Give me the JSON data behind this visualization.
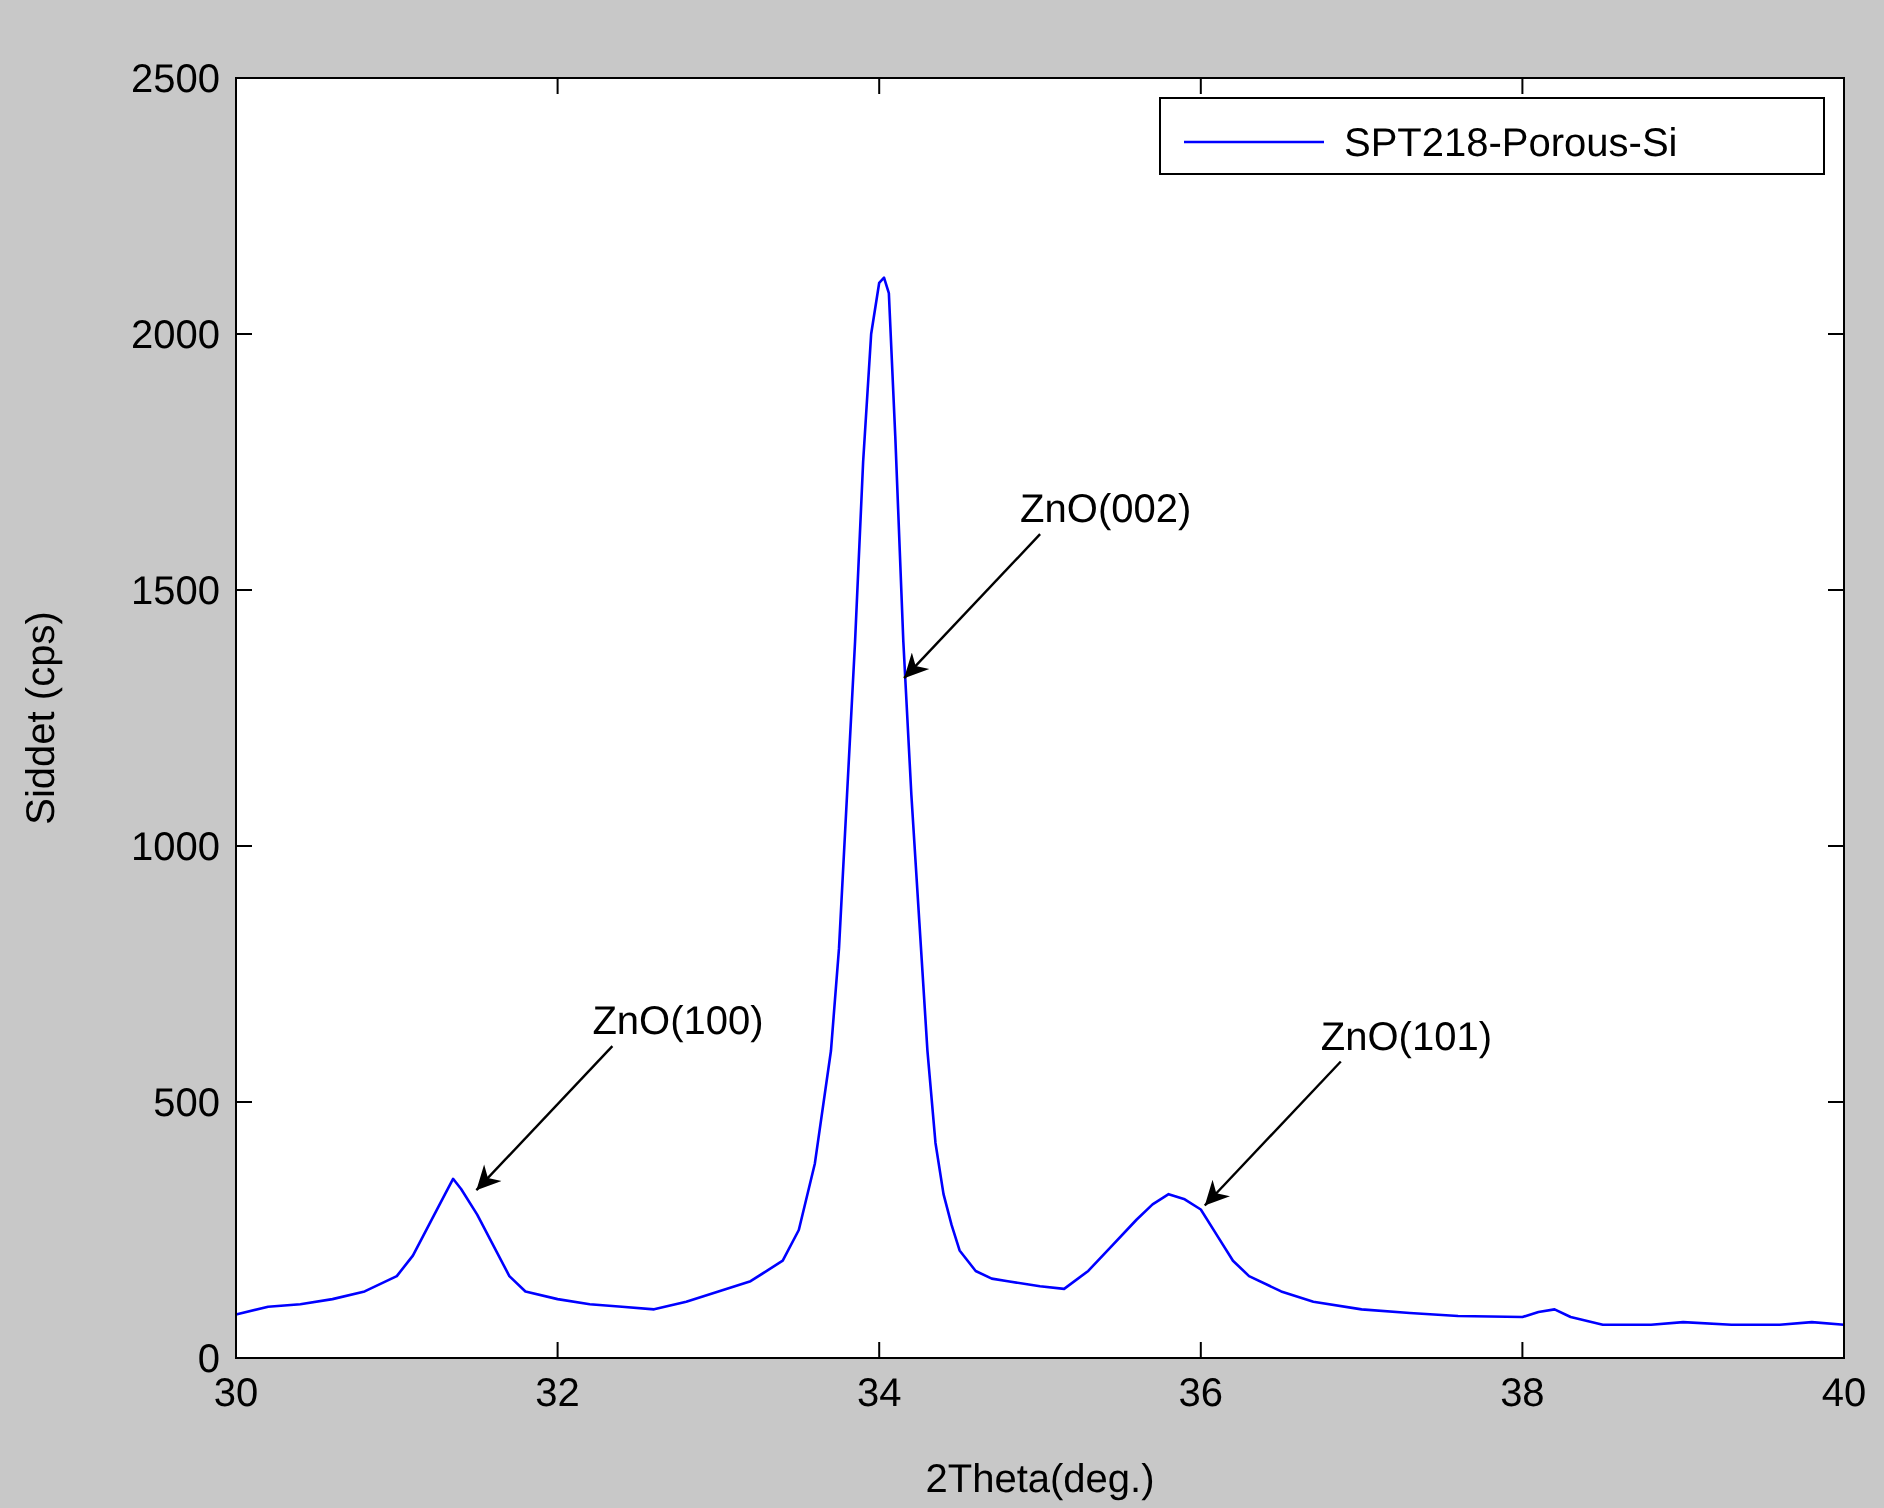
{
  "chart_data": {
    "type": "line",
    "xlabel": "2Theta(deg.)",
    "ylabel": "Siddet (cps)",
    "x": [
      30,
      30.2,
      30.4,
      30.6,
      30.8,
      31,
      31.1,
      31.2,
      31.3,
      31.35,
      31.4,
      31.5,
      31.6,
      31.7,
      31.8,
      32,
      32.2,
      32.4,
      32.6,
      32.8,
      33,
      33.2,
      33.4,
      33.5,
      33.6,
      33.7,
      33.75,
      33.8,
      33.85,
      33.9,
      33.95,
      34,
      34.03,
      34.06,
      34.1,
      34.15,
      34.2,
      34.25,
      34.3,
      34.35,
      34.4,
      34.45,
      34.5,
      34.6,
      34.7,
      34.8,
      35,
      35.15,
      35.3,
      35.45,
      35.6,
      35.7,
      35.8,
      35.9,
      36,
      36.1,
      36.2,
      36.3,
      36.5,
      36.7,
      37,
      37.3,
      37.6,
      38,
      38.1,
      38.2,
      38.3,
      38.5,
      38.8,
      39,
      39.3,
      39.6,
      39.8,
      40
    ],
    "series": [
      {
        "name": "SPT218-Porous-Si",
        "color": "#0000ff",
        "values": [
          85,
          100,
          105,
          115,
          130,
          160,
          200,
          260,
          320,
          350,
          330,
          280,
          220,
          160,
          130,
          115,
          105,
          100,
          95,
          110,
          130,
          150,
          190,
          250,
          380,
          600,
          800,
          1100,
          1400,
          1750,
          2000,
          2100,
          2110,
          2080,
          1800,
          1400,
          1100,
          850,
          600,
          420,
          320,
          260,
          210,
          170,
          155,
          150,
          140,
          135,
          170,
          220,
          270,
          300,
          320,
          310,
          290,
          240,
          190,
          160,
          130,
          110,
          95,
          88,
          82,
          80,
          90,
          95,
          80,
          65,
          65,
          70,
          65,
          65,
          70,
          65
        ]
      }
    ],
    "annotations": [
      {
        "text": "ZnO(002)",
        "x": 34.13,
        "y": 1320
      },
      {
        "text": "ZnO(100)",
        "x": 31.47,
        "y": 320
      },
      {
        "text": "ZnO(101)",
        "x": 36.0,
        "y": 290
      }
    ],
    "xlim": [
      30,
      40
    ],
    "ylim": [
      0,
      2500
    ],
    "xticks": [
      30,
      32,
      34,
      36,
      38,
      40
    ],
    "yticks": [
      0,
      500,
      1000,
      1500,
      2000,
      2500
    ],
    "grid": false,
    "legend": "top right",
    "marker": "none",
    "line_style": "solid"
  }
}
